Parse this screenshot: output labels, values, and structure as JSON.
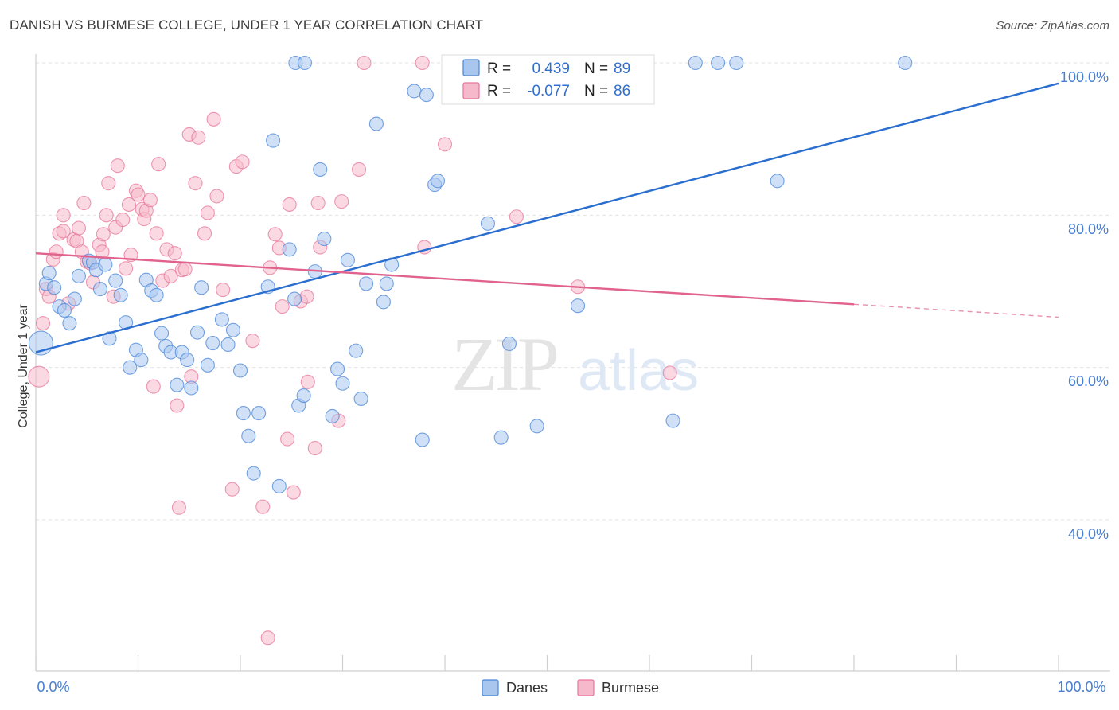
{
  "title": "DANISH VS BURMESE COLLEGE, UNDER 1 YEAR CORRELATION CHART",
  "source": "Source: ZipAtlas.com",
  "watermark": {
    "zip": "ZIP",
    "atlas": "atlas"
  },
  "colors": {
    "danes": "#4a86d8",
    "danes_fill": "#a9c7ee",
    "burmese": "#e8769a",
    "burmese_fill": "#f6b9cb",
    "axis_label": "#4a7fd0",
    "grid": "#e2e2e2"
  },
  "stats": {
    "r_label": "R =",
    "n_label": "N =",
    "danes": {
      "r": "0.439",
      "n": "89"
    },
    "burmese": {
      "r": "-0.077",
      "n": "86"
    }
  },
  "legend": {
    "danes": "Danes",
    "burmese": "Burmese"
  },
  "chart_data": {
    "type": "scatter",
    "title": "DANISH VS BURMESE COLLEGE, UNDER 1 YEAR CORRELATION CHART",
    "xlabel": "",
    "ylabel": "College, Under 1 year",
    "xlim": [
      0,
      100
    ],
    "ylim": [
      20,
      102
    ],
    "x_tick_labels": [
      "0.0%",
      "100.0%"
    ],
    "y_ticks": [
      40,
      60,
      80,
      100
    ],
    "y_tick_labels": [
      "40.0%",
      "60.0%",
      "80.0%",
      "100.0%"
    ],
    "grid": true,
    "legend_position": "bottom",
    "series": [
      {
        "name": "Danes",
        "trend": {
          "x0": 0,
          "y0": 62.0,
          "x1": 100,
          "y1": 97.3
        },
        "points": [
          [
            0.5,
            63.2
          ],
          [
            1.0,
            71.0
          ],
          [
            1.3,
            72.4
          ],
          [
            1.8,
            70.5
          ],
          [
            2.3,
            68.0
          ],
          [
            2.8,
            67.5
          ],
          [
            3.3,
            65.8
          ],
          [
            3.8,
            69.0
          ],
          [
            4.2,
            72.0
          ],
          [
            5.2,
            74.0
          ],
          [
            5.6,
            73.8
          ],
          [
            5.9,
            72.8
          ],
          [
            6.3,
            70.3
          ],
          [
            6.8,
            73.5
          ],
          [
            7.2,
            63.8
          ],
          [
            7.8,
            71.4
          ],
          [
            8.3,
            69.5
          ],
          [
            8.8,
            65.9
          ],
          [
            9.2,
            60.0
          ],
          [
            9.8,
            62.3
          ],
          [
            10.3,
            61.0
          ],
          [
            10.8,
            71.5
          ],
          [
            11.3,
            70.1
          ],
          [
            11.8,
            69.5
          ],
          [
            12.3,
            64.5
          ],
          [
            12.7,
            62.8
          ],
          [
            13.2,
            62.0
          ],
          [
            13.8,
            57.7
          ],
          [
            14.3,
            62.0
          ],
          [
            14.8,
            61.0
          ],
          [
            15.2,
            57.3
          ],
          [
            15.8,
            64.6
          ],
          [
            16.2,
            70.5
          ],
          [
            16.8,
            60.3
          ],
          [
            17.3,
            63.2
          ],
          [
            18.2,
            66.3
          ],
          [
            18.8,
            63.0
          ],
          [
            19.3,
            64.9
          ],
          [
            20.0,
            59.6
          ],
          [
            20.3,
            54.0
          ],
          [
            20.8,
            51.0
          ],
          [
            21.3,
            46.1
          ],
          [
            21.8,
            54.0
          ],
          [
            22.7,
            70.6
          ],
          [
            23.2,
            89.8
          ],
          [
            23.8,
            44.4
          ],
          [
            24.8,
            75.5
          ],
          [
            25.3,
            69.0
          ],
          [
            25.7,
            55.0
          ],
          [
            26.2,
            56.3
          ],
          [
            27.3,
            72.6
          ],
          [
            27.8,
            86.0
          ],
          [
            28.2,
            76.9
          ],
          [
            29.0,
            53.6
          ],
          [
            29.5,
            59.8
          ],
          [
            30.0,
            57.9
          ],
          [
            30.5,
            74.1
          ],
          [
            31.3,
            62.2
          ],
          [
            31.8,
            55.9
          ],
          [
            32.3,
            71.0
          ],
          [
            33.3,
            92.0
          ],
          [
            34.0,
            68.6
          ],
          [
            34.3,
            71.0
          ],
          [
            34.8,
            73.5
          ],
          [
            37.0,
            96.3
          ],
          [
            37.8,
            50.5
          ],
          [
            38.2,
            95.8
          ],
          [
            39.0,
            84.0
          ],
          [
            39.3,
            84.5
          ],
          [
            42.8,
            100.0
          ],
          [
            44.2,
            78.9
          ],
          [
            45.5,
            50.8
          ],
          [
            46.3,
            63.1
          ],
          [
            49.0,
            52.3
          ],
          [
            53.0,
            68.1
          ],
          [
            62.3,
            53.0
          ],
          [
            64.5,
            100.0
          ],
          [
            66.7,
            100.0
          ],
          [
            68.5,
            100.0
          ],
          [
            72.5,
            84.5
          ],
          [
            85.0,
            100.0
          ],
          [
            25.4,
            100.0
          ],
          [
            26.3,
            100.0
          ]
        ]
      },
      {
        "name": "Burmese",
        "trend": {
          "x0": 0,
          "y0": 75.0,
          "x1": 80,
          "y1": 68.3
        },
        "trend_dashed": {
          "x0": 80,
          "y0": 68.3,
          "x1": 100,
          "y1": 66.6
        },
        "points": [
          [
            0.3,
            58.8
          ],
          [
            0.7,
            65.8
          ],
          [
            1.0,
            70.3
          ],
          [
            1.3,
            69.3
          ],
          [
            1.7,
            74.2
          ],
          [
            2.0,
            75.2
          ],
          [
            2.3,
            77.6
          ],
          [
            2.7,
            77.9
          ],
          [
            2.7,
            80.0
          ],
          [
            3.2,
            68.4
          ],
          [
            3.7,
            76.8
          ],
          [
            4.0,
            76.6
          ],
          [
            4.2,
            78.3
          ],
          [
            4.5,
            75.2
          ],
          [
            4.7,
            81.6
          ],
          [
            5.0,
            73.9
          ],
          [
            5.3,
            73.7
          ],
          [
            5.6,
            71.2
          ],
          [
            6.2,
            76.1
          ],
          [
            6.5,
            75.2
          ],
          [
            6.6,
            77.5
          ],
          [
            6.9,
            80.0
          ],
          [
            7.1,
            84.2
          ],
          [
            7.6,
            69.3
          ],
          [
            7.8,
            78.4
          ],
          [
            8.0,
            86.5
          ],
          [
            8.5,
            79.4
          ],
          [
            8.8,
            73.0
          ],
          [
            9.1,
            81.4
          ],
          [
            9.3,
            74.8
          ],
          [
            9.8,
            83.2
          ],
          [
            10.0,
            82.7
          ],
          [
            10.4,
            80.8
          ],
          [
            10.6,
            79.5
          ],
          [
            10.8,
            80.6
          ],
          [
            11.2,
            82.0
          ],
          [
            11.5,
            57.5
          ],
          [
            11.8,
            77.6
          ],
          [
            12.0,
            86.7
          ],
          [
            12.4,
            71.4
          ],
          [
            12.8,
            75.5
          ],
          [
            13.2,
            72.0
          ],
          [
            13.6,
            75.0
          ],
          [
            13.8,
            55.0
          ],
          [
            14.0,
            41.6
          ],
          [
            14.3,
            72.8
          ],
          [
            14.6,
            72.9
          ],
          [
            15.0,
            90.6
          ],
          [
            15.2,
            58.8
          ],
          [
            15.6,
            84.2
          ],
          [
            15.9,
            90.2
          ],
          [
            16.5,
            77.6
          ],
          [
            16.8,
            80.3
          ],
          [
            17.4,
            92.6
          ],
          [
            17.7,
            82.5
          ],
          [
            18.3,
            70.2
          ],
          [
            19.2,
            44.0
          ],
          [
            19.6,
            86.4
          ],
          [
            20.2,
            87.0
          ],
          [
            21.2,
            63.5
          ],
          [
            22.2,
            41.7
          ],
          [
            22.7,
            24.5
          ],
          [
            22.9,
            73.1
          ],
          [
            23.4,
            77.5
          ],
          [
            23.8,
            75.7
          ],
          [
            24.1,
            68.0
          ],
          [
            24.6,
            50.6
          ],
          [
            24.8,
            81.4
          ],
          [
            25.2,
            43.6
          ],
          [
            25.9,
            68.7
          ],
          [
            26.5,
            69.3
          ],
          [
            26.6,
            58.1
          ],
          [
            27.3,
            49.4
          ],
          [
            27.6,
            81.6
          ],
          [
            27.8,
            75.8
          ],
          [
            29.6,
            53.0
          ],
          [
            29.9,
            81.8
          ],
          [
            31.6,
            86.0
          ],
          [
            32.1,
            100.0
          ],
          [
            37.8,
            100.0
          ],
          [
            40.0,
            89.3
          ],
          [
            47.0,
            79.8
          ],
          [
            53.0,
            70.6
          ],
          [
            62.0,
            59.3
          ],
          [
            38.0,
            75.8
          ]
        ]
      }
    ]
  }
}
